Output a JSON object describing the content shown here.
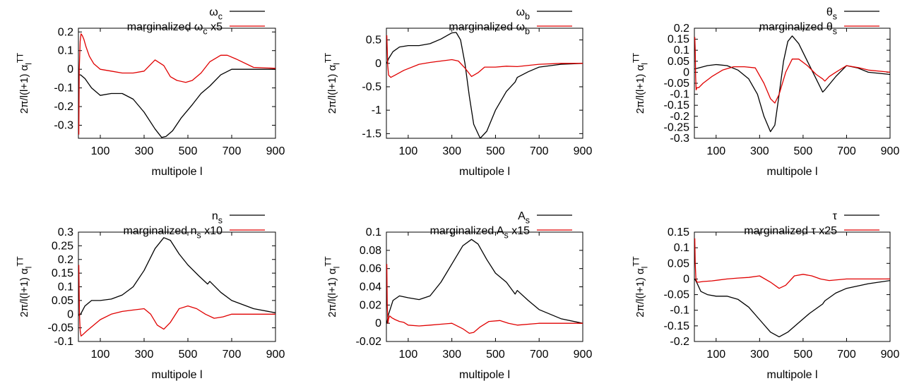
{
  "chart_data": [
    {
      "type": "line",
      "xlabel": "multipole l",
      "ylabel": "2π/l(l+1) α_l^TT",
      "xlim": [
        0,
        900
      ],
      "xticks": [
        100,
        300,
        500,
        700,
        900
      ],
      "ylim": [
        -0.37,
        0.22
      ],
      "yticks": [
        0.2,
        0.1,
        0,
        -0.1,
        -0.2,
        -0.3
      ],
      "legend": "top-right",
      "series": [
        {
          "name": "ω_c",
          "color": "#000000",
          "x": [
            2,
            10,
            30,
            60,
            100,
            150,
            200,
            250,
            300,
            350,
            380,
            400,
            430,
            470,
            520,
            560,
            590,
            600,
            650,
            700,
            800,
            900
          ],
          "y": [
            -0.03,
            -0.03,
            -0.05,
            -0.1,
            -0.14,
            -0.13,
            -0.13,
            -0.16,
            -0.23,
            -0.32,
            -0.365,
            -0.36,
            -0.33,
            -0.26,
            -0.19,
            -0.13,
            -0.1,
            -0.09,
            -0.03,
            0,
            0,
            0
          ]
        },
        {
          "name": "marginalized ω_c x5",
          "color": "#e00000",
          "x": [
            2,
            4,
            8,
            12,
            18,
            25,
            35,
            50,
            70,
            100,
            150,
            200,
            250,
            300,
            350,
            390,
            420,
            450,
            490,
            520,
            560,
            600,
            650,
            680,
            720,
            800,
            900
          ],
          "y": [
            -0.35,
            0.0,
            0.15,
            0.19,
            0.18,
            0.16,
            0.12,
            0.07,
            0.03,
            0.0,
            -0.01,
            -0.02,
            -0.02,
            -0.01,
            0.05,
            0.02,
            -0.04,
            -0.06,
            -0.07,
            -0.06,
            -0.02,
            0.04,
            0.075,
            0.075,
            0.055,
            0.01,
            0.005
          ]
        }
      ]
    },
    {
      "type": "line",
      "xlabel": "multipole l",
      "ylabel": "2π/l(l+1) α_l^TT",
      "xlim": [
        0,
        900
      ],
      "xticks": [
        100,
        300,
        500,
        700,
        900
      ],
      "ylim": [
        -1.6,
        0.75
      ],
      "yticks": [
        0.5,
        0,
        -0.5,
        -1,
        -1.5
      ],
      "legend": "top-right",
      "series": [
        {
          "name": "ω_b",
          "color": "#000000",
          "x": [
            2,
            10,
            30,
            60,
            100,
            150,
            200,
            250,
            300,
            320,
            340,
            360,
            380,
            400,
            430,
            460,
            500,
            550,
            590,
            600,
            650,
            700,
            800,
            900
          ],
          "y": [
            0,
            0.1,
            0.25,
            0.35,
            0.38,
            0.38,
            0.42,
            0.52,
            0.65,
            0.66,
            0.5,
            0.0,
            -0.7,
            -1.3,
            -1.6,
            -1.45,
            -1.0,
            -0.6,
            -0.4,
            -0.3,
            -0.18,
            -0.08,
            -0.02,
            0
          ]
        },
        {
          "name": "marginalized ω_b",
          "color": "#e00000",
          "x": [
            2,
            4,
            6,
            10,
            20,
            40,
            80,
            150,
            200,
            250,
            300,
            330,
            360,
            390,
            420,
            450,
            500,
            550,
            600,
            700,
            800,
            900
          ],
          "y": [
            0.6,
            0.3,
            -0.05,
            -0.25,
            -0.3,
            -0.25,
            -0.15,
            -0.02,
            0.02,
            0.05,
            0.08,
            0.05,
            -0.1,
            -0.28,
            -0.2,
            -0.08,
            -0.08,
            -0.06,
            -0.07,
            -0.02,
            0,
            0
          ]
        }
      ]
    },
    {
      "type": "line",
      "xlabel": "multipole l",
      "ylabel": "2π/l(l+1) α_l^TT",
      "xlim": [
        0,
        900
      ],
      "xticks": [
        100,
        300,
        500,
        700,
        900
      ],
      "ylim": [
        -0.3,
        0.2
      ],
      "yticks": [
        0.2,
        0.15,
        0.1,
        0.05,
        0,
        -0.05,
        -0.1,
        -0.15,
        -0.2,
        -0.25,
        -0.3
      ],
      "legend": "top-right",
      "series": [
        {
          "name": "θ_s",
          "color": "#000000",
          "x": [
            2,
            20,
            60,
            100,
            150,
            200,
            250,
            290,
            320,
            350,
            370,
            390,
            410,
            430,
            450,
            480,
            520,
            560,
            590,
            600,
            650,
            700,
            750,
            800,
            900
          ],
          "y": [
            0.015,
            0.02,
            0.03,
            0.035,
            0.03,
            0.01,
            -0.03,
            -0.1,
            -0.2,
            -0.27,
            -0.24,
            -0.1,
            0.05,
            0.14,
            0.165,
            0.13,
            0.05,
            -0.03,
            -0.09,
            -0.08,
            -0.02,
            0.03,
            0.02,
            0.0,
            -0.01
          ]
        },
        {
          "name": "marginalized θ_s",
          "color": "#e00000",
          "x": [
            2,
            4,
            6,
            8,
            12,
            20,
            40,
            80,
            130,
            180,
            230,
            280,
            320,
            350,
            370,
            390,
            420,
            450,
            480,
            520,
            560,
            590,
            600,
            620,
            650,
            700,
            760,
            800,
            900
          ],
          "y": [
            0.16,
            0.1,
            -0.02,
            -0.08,
            -0.07,
            -0.07,
            -0.05,
            -0.02,
            0.01,
            0.025,
            0.025,
            0.02,
            -0.05,
            -0.12,
            -0.14,
            -0.1,
            0.0,
            0.06,
            0.06,
            0.03,
            -0.01,
            -0.03,
            -0.04,
            -0.02,
            0.0,
            0.03,
            0.02,
            0.01,
            0.0
          ]
        }
      ]
    },
    {
      "type": "line",
      "xlabel": "multipole l",
      "ylabel": "2π/l(l+1) α_l^TT",
      "xlim": [
        0,
        900
      ],
      "xticks": [
        100,
        300,
        500,
        700,
        900
      ],
      "ylim": [
        -0.1,
        0.3
      ],
      "yticks": [
        0.3,
        0.25,
        0.2,
        0.15,
        0.1,
        0.05,
        0,
        -0.05,
        -0.1
      ],
      "legend": "top-right",
      "series": [
        {
          "name": "n_s",
          "color": "#000000",
          "x": [
            2,
            10,
            30,
            60,
            100,
            150,
            200,
            250,
            300,
            350,
            390,
            420,
            460,
            500,
            550,
            590,
            600,
            650,
            700,
            800,
            900
          ],
          "y": [
            -0.005,
            0.0,
            0.03,
            0.05,
            0.05,
            0.055,
            0.07,
            0.1,
            0.16,
            0.24,
            0.28,
            0.27,
            0.22,
            0.18,
            0.14,
            0.11,
            0.12,
            0.08,
            0.05,
            0.02,
            0.005
          ]
        },
        {
          "name": "marginalized n_s x10",
          "color": "#e00000",
          "x": [
            2,
            5,
            8,
            12,
            20,
            40,
            70,
            100,
            150,
            200,
            250,
            300,
            330,
            360,
            390,
            420,
            460,
            500,
            540,
            580,
            620,
            660,
            700,
            800,
            900
          ],
          "y": [
            0.18,
            0.0,
            -0.06,
            -0.08,
            -0.075,
            -0.06,
            -0.04,
            -0.02,
            0.0,
            0.01,
            0.015,
            0.02,
            0.0,
            -0.04,
            -0.055,
            -0.03,
            0.02,
            0.03,
            0.02,
            0.0,
            -0.015,
            -0.01,
            0.0,
            0.0,
            0.0
          ]
        }
      ]
    },
    {
      "type": "line",
      "xlabel": "multipole l",
      "ylabel": "2π/l(l+1) α_l^TT",
      "xlim": [
        0,
        900
      ],
      "xticks": [
        100,
        300,
        500,
        700,
        900
      ],
      "ylim": [
        -0.02,
        0.1
      ],
      "yticks": [
        0.1,
        0.08,
        0.06,
        0.04,
        0.02,
        0,
        -0.02
      ],
      "legend": "top-right",
      "series": [
        {
          "name": "A_s",
          "color": "#000000",
          "x": [
            2,
            10,
            30,
            60,
            100,
            150,
            200,
            250,
            300,
            350,
            390,
            420,
            460,
            500,
            550,
            590,
            600,
            650,
            700,
            800,
            900
          ],
          "y": [
            0.0,
            0.01,
            0.025,
            0.03,
            0.028,
            0.026,
            0.03,
            0.045,
            0.065,
            0.085,
            0.092,
            0.087,
            0.07,
            0.055,
            0.045,
            0.032,
            0.036,
            0.025,
            0.015,
            0.005,
            0.0
          ]
        },
        {
          "name": "marginalized A_s x15",
          "color": "#e00000",
          "x": [
            2,
            4,
            7,
            10,
            15,
            25,
            40,
            60,
            80,
            100,
            150,
            200,
            250,
            300,
            350,
            380,
            400,
            430,
            470,
            520,
            560,
            600,
            700,
            800,
            900
          ],
          "y": [
            0.065,
            0.02,
            0.0,
            0.005,
            0.008,
            0.006,
            0.004,
            0.002,
            0.001,
            -0.002,
            -0.003,
            -0.002,
            -0.001,
            0.0,
            -0.006,
            -0.011,
            -0.01,
            -0.004,
            0.002,
            0.003,
            0.0,
            -0.002,
            0.0,
            0.0,
            0.0
          ]
        }
      ]
    },
    {
      "type": "line",
      "xlabel": "multipole l",
      "ylabel": "2π/l(l+1) α_l^TT",
      "xlim": [
        0,
        900
      ],
      "xticks": [
        100,
        300,
        500,
        700,
        900
      ],
      "ylim": [
        -0.2,
        0.15
      ],
      "yticks": [
        0.15,
        0.1,
        0.05,
        0,
        -0.05,
        -0.1,
        -0.15,
        -0.2
      ],
      "legend": "top-right",
      "series": [
        {
          "name": "τ",
          "color": "#000000",
          "x": [
            2,
            10,
            30,
            60,
            100,
            150,
            200,
            250,
            300,
            350,
            390,
            430,
            480,
            530,
            590,
            600,
            650,
            700,
            800,
            900
          ],
          "y": [
            0.0,
            -0.01,
            -0.04,
            -0.05,
            -0.055,
            -0.055,
            -0.065,
            -0.09,
            -0.13,
            -0.17,
            -0.185,
            -0.17,
            -0.14,
            -0.11,
            -0.08,
            -0.07,
            -0.045,
            -0.03,
            -0.015,
            -0.005
          ]
        },
        {
          "name": "marginalized τ x25",
          "color": "#e00000",
          "x": [
            2,
            4,
            7,
            12,
            20,
            40,
            80,
            150,
            200,
            250,
            300,
            350,
            390,
            420,
            460,
            500,
            540,
            580,
            620,
            700,
            800,
            900
          ],
          "y": [
            0.13,
            0.05,
            0.0,
            -0.01,
            -0.01,
            -0.008,
            -0.006,
            0.0,
            0.003,
            0.005,
            0.01,
            -0.01,
            -0.03,
            -0.02,
            0.01,
            0.015,
            0.01,
            0.0,
            -0.005,
            0.0,
            0.0,
            0.0
          ]
        }
      ]
    }
  ]
}
